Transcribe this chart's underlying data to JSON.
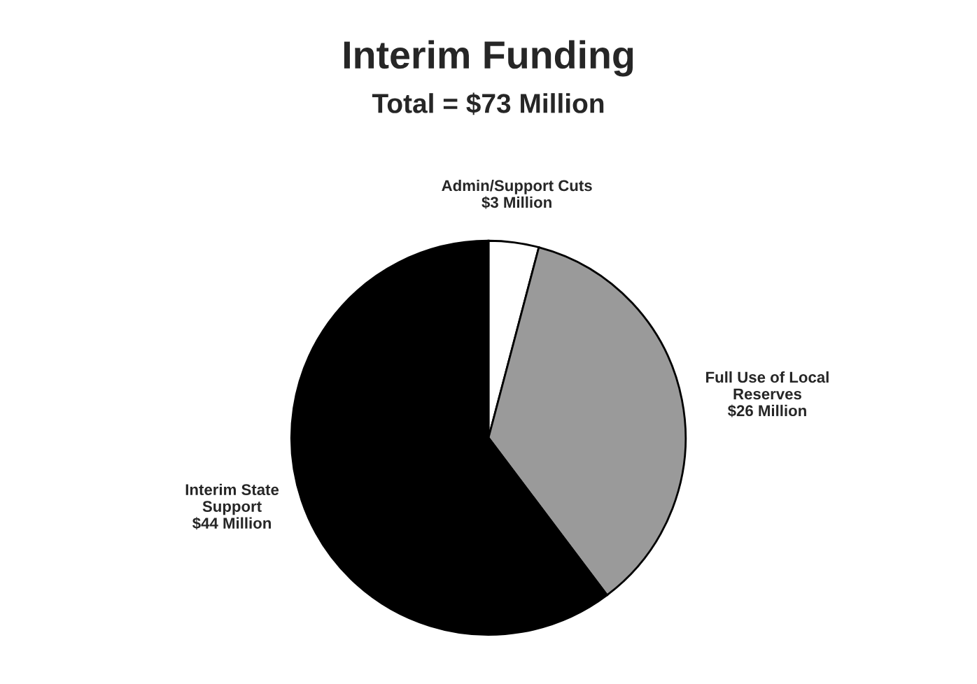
{
  "chart_data": {
    "type": "pie",
    "title": "Interim Funding",
    "subtitle": "Total = $73 Million",
    "categories": [
      "Admin/Support Cuts",
      "Full Use of Local\nReserves",
      "Interim State\nSupport"
    ],
    "values": [
      3,
      26,
      44
    ],
    "value_labels": [
      "$3 Million",
      "$26 Million",
      "$44 Million"
    ],
    "colors": [
      "#ffffff",
      "#9a9a9a",
      "#000000"
    ]
  }
}
